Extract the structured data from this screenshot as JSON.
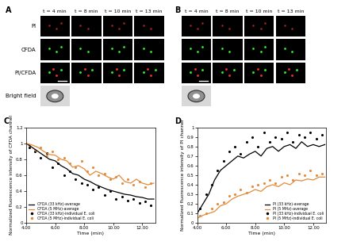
{
  "image_panels": [
    {
      "panel": "A",
      "time_labels": [
        "t = 4 min",
        "t = 8 min",
        "t = 10 min",
        "t = 13 min"
      ],
      "row_labels": [
        "PI",
        "CFDA",
        "PI/CFDA",
        "Bright field"
      ]
    },
    {
      "panel": "B",
      "time_labels": [
        "t = 4 min",
        "t = 8 min",
        "t = 10 min",
        "t = 13 min"
      ]
    }
  ],
  "chart_data": [
    {
      "panel": "C",
      "type": "line",
      "x_label": "Time (min)",
      "y_label": "Normalized fluorescence intensity of CFDA channel",
      "xlim": [
        4,
        12.9
      ],
      "ylim": [
        0,
        1.2
      ],
      "xticks": [
        {
          "value": 4,
          "label": "4.00"
        },
        {
          "value": 6,
          "label": "6.00"
        },
        {
          "value": 8,
          "label": "8.00"
        },
        {
          "value": 10,
          "label": "10.00"
        },
        {
          "value": 12,
          "label": "12.00"
        }
      ],
      "yticks": [
        0,
        0.2,
        0.4,
        0.6,
        0.8,
        1,
        1.2
      ],
      "grid": false,
      "legend": "lower left",
      "series": [
        {
          "name": "CFDA (33 kHz)-average",
          "type": "line",
          "color": "#000000",
          "x": [
            4.0,
            4.4,
            4.8,
            5.2,
            5.6,
            6.0,
            6.4,
            6.8,
            7.2,
            7.6,
            8.0,
            8.4,
            8.8,
            9.2,
            9.6,
            10.0,
            10.4,
            10.8,
            11.2,
            11.6,
            12.0,
            12.4,
            12.8
          ],
          "values": [
            1.0,
            0.95,
            0.9,
            0.85,
            0.8,
            0.78,
            0.72,
            0.68,
            0.62,
            0.6,
            0.55,
            0.52,
            0.48,
            0.45,
            0.42,
            0.4,
            0.38,
            0.36,
            0.35,
            0.33,
            0.32,
            0.3,
            0.3
          ]
        },
        {
          "name": "CFDA (5 MHz)-average",
          "type": "line",
          "color": "#e38b3a",
          "x": [
            4.0,
            4.4,
            4.8,
            5.2,
            5.6,
            6.0,
            6.4,
            6.8,
            7.2,
            7.6,
            8.0,
            8.4,
            8.8,
            9.2,
            9.6,
            10.0,
            10.4,
            10.8,
            11.2,
            11.6,
            12.0,
            12.4,
            12.8
          ],
          "values": [
            1.0,
            0.98,
            0.95,
            0.9,
            0.86,
            0.85,
            0.8,
            0.78,
            0.7,
            0.72,
            0.68,
            0.6,
            0.65,
            0.62,
            0.58,
            0.55,
            0.6,
            0.52,
            0.5,
            0.55,
            0.5,
            0.48,
            0.5
          ]
        },
        {
          "name": "CFDA (33 kHz)-individual E. coli",
          "type": "scatter",
          "marker": "o",
          "color": "#000000",
          "x": [
            4.2,
            4.6,
            5.0,
            5.4,
            5.8,
            6.2,
            6.6,
            7.0,
            7.4,
            7.8,
            8.2,
            8.6,
            9.0,
            9.4,
            9.8,
            10.2,
            10.6,
            11.0,
            11.4,
            11.8,
            12.2,
            12.6
          ],
          "values": [
            0.95,
            0.9,
            0.82,
            0.88,
            0.7,
            0.75,
            0.6,
            0.65,
            0.55,
            0.5,
            0.48,
            0.42,
            0.45,
            0.35,
            0.4,
            0.3,
            0.33,
            0.28,
            0.3,
            0.25,
            0.27,
            0.22
          ]
        },
        {
          "name": "CFDA (5 MHz)-individual E. coli",
          "type": "scatter",
          "marker": "o",
          "color": "#e38b3a",
          "x": [
            4.2,
            4.6,
            5.0,
            5.4,
            5.8,
            6.2,
            6.6,
            7.0,
            7.4,
            7.8,
            8.2,
            8.6,
            9.0,
            9.4,
            9.8,
            10.2,
            10.6,
            11.0,
            11.4,
            11.8,
            12.2,
            12.6
          ],
          "values": [
            0.98,
            0.92,
            0.95,
            0.85,
            0.9,
            0.8,
            0.82,
            0.75,
            0.7,
            0.78,
            0.65,
            0.7,
            0.6,
            0.62,
            0.55,
            0.58,
            0.5,
            0.55,
            0.48,
            0.52,
            0.45,
            0.5
          ]
        }
      ]
    },
    {
      "panel": "D",
      "type": "line",
      "x_label": "Time (min)",
      "y_label": "Normalized fluorescence intensity of PI channel",
      "xlim": [
        4,
        12.9
      ],
      "ylim": [
        0,
        1
      ],
      "xticks": [
        {
          "value": 4,
          "label": "4.00"
        },
        {
          "value": 6,
          "label": "6.00"
        },
        {
          "value": 8,
          "label": "8.00"
        },
        {
          "value": 10,
          "label": "10.00"
        },
        {
          "value": 12,
          "label": "12.00"
        }
      ],
      "yticks": [
        0,
        0.1,
        0.2,
        0.3,
        0.4,
        0.5,
        0.6,
        0.7,
        0.8,
        0.9,
        1
      ],
      "grid": false,
      "legend": "lower right",
      "series": [
        {
          "name": "PI (33 kHz)-average",
          "type": "line",
          "color": "#000000",
          "x": [
            4.0,
            4.4,
            4.8,
            5.2,
            5.6,
            6.0,
            6.4,
            6.8,
            7.2,
            7.6,
            8.0,
            8.4,
            8.8,
            9.2,
            9.6,
            10.0,
            10.4,
            10.8,
            11.2,
            11.6,
            12.0,
            12.4,
            12.8
          ],
          "values": [
            0.1,
            0.2,
            0.3,
            0.45,
            0.55,
            0.6,
            0.65,
            0.7,
            0.68,
            0.72,
            0.75,
            0.7,
            0.78,
            0.8,
            0.75,
            0.8,
            0.82,
            0.78,
            0.85,
            0.8,
            0.82,
            0.8,
            0.82
          ]
        },
        {
          "name": "PI (5 MHz)-average",
          "type": "line",
          "color": "#e38b3a",
          "x": [
            4.0,
            4.4,
            4.8,
            5.2,
            5.6,
            6.0,
            6.4,
            6.8,
            7.2,
            7.6,
            8.0,
            8.4,
            8.8,
            9.2,
            9.6,
            10.0,
            10.4,
            10.8,
            11.2,
            11.6,
            12.0,
            12.4,
            12.8
          ],
          "values": [
            0.05,
            0.08,
            0.1,
            0.12,
            0.18,
            0.2,
            0.25,
            0.28,
            0.3,
            0.32,
            0.35,
            0.33,
            0.38,
            0.4,
            0.38,
            0.42,
            0.4,
            0.45,
            0.44,
            0.46,
            0.45,
            0.48,
            0.48
          ]
        },
        {
          "name": "PI (33 kHz)-individual E. coli",
          "type": "scatter",
          "marker": "o",
          "color": "#000000",
          "x": [
            4.2,
            4.6,
            5.0,
            5.4,
            5.8,
            6.2,
            6.6,
            7.0,
            7.4,
            7.8,
            8.2,
            8.6,
            9.0,
            9.4,
            9.8,
            10.2,
            10.6,
            11.0,
            11.4,
            11.8,
            12.2,
            12.6
          ],
          "values": [
            0.15,
            0.3,
            0.4,
            0.55,
            0.65,
            0.75,
            0.8,
            0.72,
            0.85,
            0.9,
            0.8,
            0.95,
            0.85,
            0.9,
            0.88,
            0.95,
            0.85,
            0.92,
            0.9,
            0.95,
            0.88,
            0.92
          ]
        },
        {
          "name": "PI (5 MHz)-individual E. coli",
          "type": "scatter",
          "marker": "o",
          "color": "#e38b3a",
          "x": [
            4.2,
            4.6,
            5.0,
            5.4,
            5.8,
            6.2,
            6.6,
            7.0,
            7.4,
            7.8,
            8.2,
            8.6,
            9.0,
            9.4,
            9.8,
            10.2,
            10.6,
            11.0,
            11.4,
            11.8,
            12.2,
            12.6
          ],
          "values": [
            0.08,
            0.1,
            0.15,
            0.2,
            0.22,
            0.28,
            0.3,
            0.35,
            0.32,
            0.38,
            0.4,
            0.42,
            0.45,
            0.42,
            0.48,
            0.5,
            0.45,
            0.52,
            0.5,
            0.55,
            0.5,
            0.52
          ]
        }
      ]
    }
  ]
}
